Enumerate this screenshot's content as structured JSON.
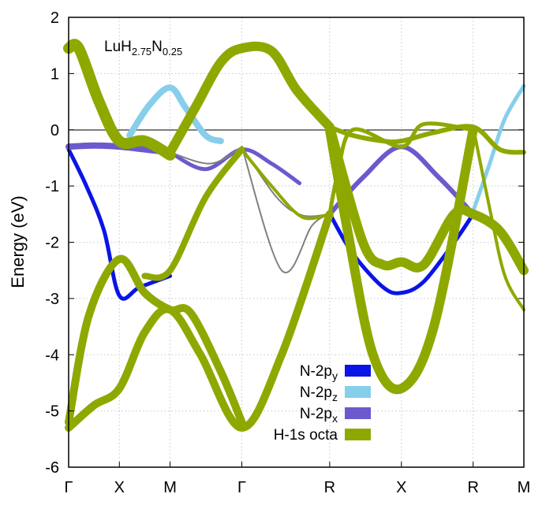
{
  "chart_data": {
    "type": "line",
    "title": "LuH",
    "title_sub1": "2.75",
    "title_mid": "N",
    "title_sub2": "0.25",
    "ylabel": "Energy (eV)",
    "xlabel": "",
    "ylim": [
      -6,
      2
    ],
    "yticks": [
      -6,
      -5,
      -4,
      -3,
      -2,
      -1,
      0,
      1,
      2
    ],
    "grid": true,
    "legend_position": "bottom-right",
    "kpoints": [
      {
        "label": "Γ",
        "x": 0
      },
      {
        "label": "X",
        "x": 1
      },
      {
        "label": "M",
        "x": 2
      },
      {
        "label": "Γ",
        "x": 3.414
      },
      {
        "label": "R",
        "x": 5.146
      },
      {
        "label": "X",
        "x": 6.56
      },
      {
        "label": "R",
        "x": 7.974
      },
      {
        "label": "M",
        "x": 8.974
      }
    ],
    "legend": [
      {
        "base": "N-2p",
        "sub": "y",
        "color": "#0a14e6"
      },
      {
        "base": "N-2p",
        "sub": "z",
        "color": "#87ceeb"
      },
      {
        "base": "N-2p",
        "sub": "x",
        "color": "#6a5acd"
      },
      {
        "base": "H-1s octa",
        "sub": "",
        "color": "#8fa800"
      }
    ],
    "series": [
      {
        "character": "N-2py",
        "color": "#0a14e6",
        "width": 5,
        "points": [
          [
            0,
            -0.35
          ],
          [
            0.35,
            -1.0
          ],
          [
            0.7,
            -1.8
          ],
          [
            1.0,
            -2.95
          ],
          [
            1.4,
            -2.8
          ],
          [
            2.0,
            -2.6
          ]
        ]
      },
      {
        "character": "N-2py",
        "color": "#0a14e6",
        "width": 5,
        "points": [
          [
            5.15,
            -1.5
          ],
          [
            5.6,
            -2.2
          ],
          [
            6.2,
            -2.8
          ],
          [
            6.56,
            -2.9
          ],
          [
            7.0,
            -2.7
          ],
          [
            7.6,
            -2.0
          ],
          [
            7.974,
            -1.5
          ]
        ]
      },
      {
        "character": "N-2pz",
        "color": "#87ceeb",
        "width": 8,
        "points": [
          [
            1.2,
            -0.1
          ],
          [
            1.6,
            0.45
          ],
          [
            2.0,
            0.75
          ],
          [
            2.3,
            0.4
          ],
          [
            2.7,
            -0.1
          ],
          [
            3.0,
            -0.2
          ]
        ]
      },
      {
        "character": "N-2pz",
        "color": "#87ceeb",
        "width": 5,
        "points": [
          [
            7.974,
            -1.45
          ],
          [
            8.3,
            -0.6
          ],
          [
            8.6,
            0.2
          ],
          [
            8.974,
            0.78
          ]
        ]
      },
      {
        "character": "N-2px",
        "color": "#6a5acd",
        "width": 8,
        "points": [
          [
            0,
            -0.3
          ],
          [
            0.5,
            -0.28
          ],
          [
            1.0,
            -0.3
          ],
          [
            1.5,
            -0.35
          ],
          [
            2.0,
            -0.4
          ]
        ]
      },
      {
        "character": "N-2px",
        "color": "#6a5acd",
        "width": 5,
        "points": [
          [
            2.0,
            -0.4
          ],
          [
            2.7,
            -0.7
          ],
          [
            3.414,
            -0.35
          ],
          [
            4.0,
            -0.6
          ],
          [
            4.55,
            -0.95
          ]
        ]
      },
      {
        "character": "N-2px",
        "color": "#6a5acd",
        "width": 6,
        "points": [
          [
            5.146,
            -1.5
          ],
          [
            5.8,
            -0.85
          ],
          [
            6.56,
            -0.3
          ],
          [
            7.3,
            -0.85
          ],
          [
            7.974,
            -1.5
          ]
        ]
      },
      {
        "character": "N-2px",
        "color": "#808080",
        "width": 2,
        "points": [
          [
            2.0,
            -0.4
          ],
          [
            2.8,
            -0.6
          ],
          [
            3.414,
            -0.3
          ]
        ]
      },
      {
        "character": "N-2px",
        "color": "#808080",
        "width": 2,
        "points": [
          [
            3.414,
            -0.3
          ],
          [
            4.1,
            -1.2
          ],
          [
            4.6,
            -1.52
          ],
          [
            5.146,
            -1.5
          ]
        ]
      },
      {
        "character": "N-2px",
        "color": "#808080",
        "width": 2,
        "points": [
          [
            3.414,
            -0.3
          ],
          [
            4.2,
            -2.5
          ],
          [
            4.8,
            -1.7
          ],
          [
            5.146,
            -1.5
          ]
        ]
      },
      {
        "character": "H-1s octa",
        "color": "#8fa800",
        "width": 14,
        "points": [
          [
            0,
            1.45
          ],
          [
            0.2,
            1.45
          ],
          [
            0.6,
            0.5
          ],
          [
            1.0,
            -0.2
          ],
          [
            1.5,
            -0.2
          ],
          [
            2.0,
            -0.45
          ]
        ]
      },
      {
        "character": "H-1s octa",
        "color": "#8fa800",
        "width": 12,
        "points": [
          [
            2.0,
            -0.4
          ],
          [
            2.5,
            0.4
          ],
          [
            3.0,
            1.2
          ],
          [
            3.414,
            1.45
          ],
          [
            4.0,
            1.4
          ],
          [
            4.5,
            0.7
          ],
          [
            5.146,
            0.05
          ]
        ]
      },
      {
        "character": "H-1s octa",
        "color": "#8fa800",
        "width": 10,
        "points": [
          [
            0,
            -5.3
          ],
          [
            0.5,
            -4.9
          ],
          [
            1.0,
            -4.6
          ],
          [
            1.5,
            -3.6
          ],
          [
            2.0,
            -3.2
          ],
          [
            2.6,
            -4.0
          ],
          [
            3.414,
            -5.3
          ],
          [
            4.2,
            -4.0
          ],
          [
            5.146,
            -1.5
          ]
        ]
      },
      {
        "character": "H-1s octa",
        "color": "#8fa800",
        "width": 10,
        "points": [
          [
            0,
            -5.2
          ],
          [
            0.4,
            -3.3
          ],
          [
            1.0,
            -2.3
          ],
          [
            1.5,
            -2.9
          ],
          [
            2.0,
            -3.2
          ],
          [
            2.4,
            -3.25
          ],
          [
            3.0,
            -4.3
          ],
          [
            3.414,
            -5.2
          ]
        ]
      },
      {
        "character": "H-1s octa",
        "color": "#8fa800",
        "width": 8,
        "points": [
          [
            1.5,
            -2.6
          ],
          [
            2.0,
            -2.5
          ],
          [
            2.7,
            -1.2
          ],
          [
            3.414,
            -0.35
          ]
        ]
      },
      {
        "character": "H-1s octa",
        "color": "#8fa800",
        "width": 4,
        "points": [
          [
            3.414,
            -0.35
          ],
          [
            4.0,
            -1.0
          ],
          [
            4.6,
            -1.55
          ],
          [
            5.146,
            -1.5
          ]
        ]
      },
      {
        "character": "H-1s octa",
        "color": "#8fa800",
        "width": 12,
        "points": [
          [
            5.146,
            0.0
          ],
          [
            5.5,
            -1.8
          ],
          [
            6.0,
            -4.0
          ],
          [
            6.56,
            -4.6
          ],
          [
            7.2,
            -3.5
          ],
          [
            7.974,
            0.0
          ]
        ]
      },
      {
        "character": "H-1s octa",
        "color": "#8fa800",
        "width": 12,
        "points": [
          [
            5.146,
            0.05
          ],
          [
            5.8,
            -2.0
          ],
          [
            6.2,
            -2.4
          ],
          [
            6.56,
            -2.35
          ],
          [
            7.0,
            -2.4
          ],
          [
            7.6,
            -1.5
          ],
          [
            7.974,
            -1.5
          ],
          [
            8.5,
            -1.8
          ],
          [
            8.974,
            -2.5
          ]
        ]
      },
      {
        "character": "H-1s octa",
        "color": "#8fa800",
        "width": 6,
        "points": [
          [
            5.146,
            0.05
          ],
          [
            5.6,
            -0.1
          ],
          [
            6.2,
            -0.2
          ],
          [
            6.56,
            -0.2
          ],
          [
            7.2,
            -0.05
          ],
          [
            7.974,
            0.05
          ],
          [
            8.5,
            -0.35
          ],
          [
            8.974,
            -0.4
          ]
        ]
      },
      {
        "character": "H-1s octa",
        "color": "#8fa800",
        "width": 4,
        "points": [
          [
            7.974,
            0.05
          ],
          [
            8.3,
            -1.4
          ],
          [
            8.6,
            -2.6
          ],
          [
            8.974,
            -3.2
          ]
        ]
      },
      {
        "character": "H-1s octa",
        "color": "#8fa800",
        "width": 5,
        "points": [
          [
            5.146,
            -1.5
          ],
          [
            5.3,
            -0.8
          ],
          [
            5.6,
            0.0
          ],
          [
            6.56,
            -0.3
          ],
          [
            7.0,
            0.1
          ],
          [
            7.974,
            0.0
          ]
        ]
      }
    ]
  }
}
